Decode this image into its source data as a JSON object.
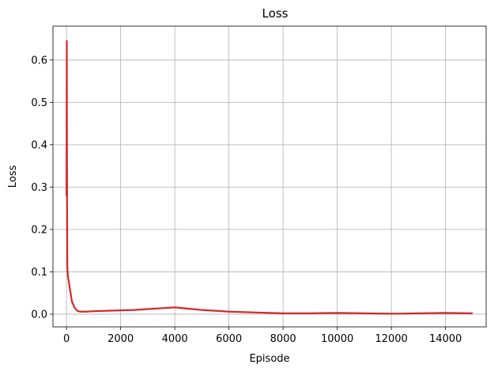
{
  "chart_data": {
    "type": "line",
    "title": "Loss",
    "xlabel": "Episode",
    "ylabel": "Loss",
    "xlim": [
      -500,
      15500
    ],
    "ylim": [
      -0.03,
      0.68
    ],
    "xticks": [
      0,
      2000,
      4000,
      6000,
      8000,
      10000,
      12000,
      14000
    ],
    "xtick_labels": [
      "0",
      "2000",
      "4000",
      "6000",
      "8000",
      "10000",
      "12000",
      "14000"
    ],
    "yticks": [
      0.0,
      0.1,
      0.2,
      0.3,
      0.4,
      0.5,
      0.6
    ],
    "ytick_labels": [
      "0.0",
      "0.1",
      "0.2",
      "0.3",
      "0.4",
      "0.5",
      "0.6"
    ],
    "grid": true,
    "series": [
      {
        "color": "#d62728",
        "x": [
          0,
          10,
          20,
          30,
          40,
          60,
          80,
          100,
          150,
          200,
          300,
          400,
          500,
          700,
          1000,
          1500,
          2000,
          2500,
          3000,
          3500,
          4000,
          4500,
          5000,
          5500,
          6000,
          7000,
          8000,
          9000,
          10000,
          11000,
          12000,
          13000,
          14000,
          15000
        ],
        "y": [
          0.28,
          0.645,
          0.3,
          0.12,
          0.1,
          0.085,
          0.08,
          0.07,
          0.05,
          0.03,
          0.015,
          0.008,
          0.006,
          0.006,
          0.007,
          0.008,
          0.009,
          0.01,
          0.012,
          0.014,
          0.016,
          0.013,
          0.01,
          0.008,
          0.006,
          0.004,
          0.002,
          0.002,
          0.003,
          0.002,
          0.001,
          0.002,
          0.003,
          0.002
        ]
      }
    ]
  }
}
